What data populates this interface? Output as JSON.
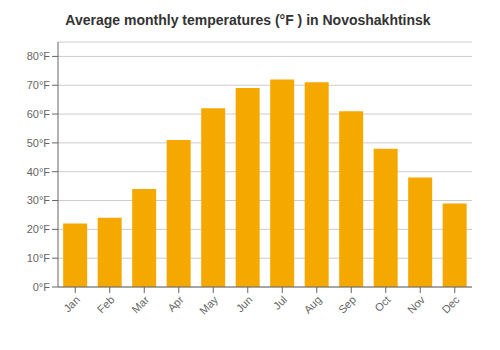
{
  "chart_data": {
    "type": "bar",
    "title": "Average monthly temperatures (°F ) in Novoshakhtinsk",
    "categories": [
      "Jan",
      "Feb",
      "Mar",
      "Apr",
      "May",
      "Jun",
      "Jul",
      "Aug",
      "Sep",
      "Oct",
      "Nov",
      "Dec"
    ],
    "values": [
      22,
      24,
      34,
      51,
      62,
      69,
      72,
      71,
      61,
      48,
      38,
      29
    ],
    "color": "#F5A800",
    "ylim": [
      0,
      85
    ],
    "yticks": [
      {
        "value": 0,
        "label": "0°F"
      },
      {
        "value": 10,
        "label": "10°F"
      },
      {
        "value": 20,
        "label": "20°F"
      },
      {
        "value": 30,
        "label": "30°F"
      },
      {
        "value": 40,
        "label": "40°F"
      },
      {
        "value": 50,
        "label": "50°F"
      },
      {
        "value": 60,
        "label": "60°F"
      },
      {
        "value": 70,
        "label": "70°F"
      },
      {
        "value": 80,
        "label": "80°F"
      }
    ],
    "grid": true
  }
}
